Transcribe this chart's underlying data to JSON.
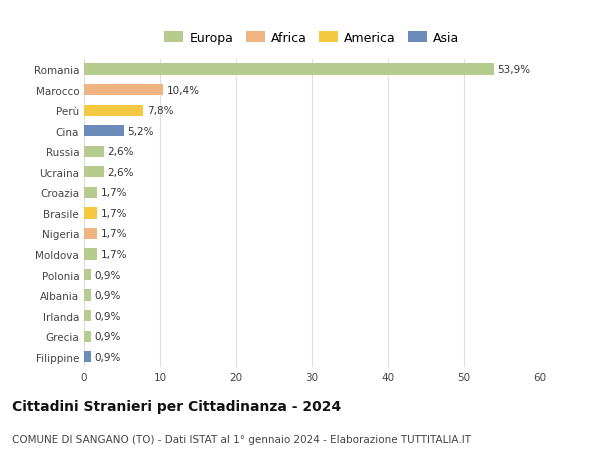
{
  "countries": [
    "Romania",
    "Marocco",
    "Perù",
    "Cina",
    "Russia",
    "Ucraina",
    "Croazia",
    "Brasile",
    "Nigeria",
    "Moldova",
    "Polonia",
    "Albania",
    "Irlanda",
    "Grecia",
    "Filippine"
  ],
  "values": [
    53.9,
    10.4,
    7.8,
    5.2,
    2.6,
    2.6,
    1.7,
    1.7,
    1.7,
    1.7,
    0.9,
    0.9,
    0.9,
    0.9,
    0.9
  ],
  "labels": [
    "53,9%",
    "10,4%",
    "7,8%",
    "5,2%",
    "2,6%",
    "2,6%",
    "1,7%",
    "1,7%",
    "1,7%",
    "1,7%",
    "0,9%",
    "0,9%",
    "0,9%",
    "0,9%",
    "0,9%"
  ],
  "colors": [
    "#b5cc8e",
    "#f0b482",
    "#f5c842",
    "#6b8cba",
    "#b5cc8e",
    "#b5cc8e",
    "#b5cc8e",
    "#f5c842",
    "#f0b482",
    "#b5cc8e",
    "#b5cc8e",
    "#b5cc8e",
    "#b5cc8e",
    "#b5cc8e",
    "#6b8cba"
  ],
  "legend_labels": [
    "Europa",
    "Africa",
    "America",
    "Asia"
  ],
  "legend_colors": [
    "#b5cc8e",
    "#f0b482",
    "#f5c842",
    "#6b8cba"
  ],
  "xlim": [
    0,
    60
  ],
  "xticks": [
    0,
    10,
    20,
    30,
    40,
    50,
    60
  ],
  "title": "Cittadini Stranieri per Cittadinanza - 2024",
  "subtitle": "COMUNE DI SANGANO (TO) - Dati ISTAT al 1° gennaio 2024 - Elaborazione TUTTITALIA.IT",
  "background_color": "#ffffff",
  "bar_height": 0.55,
  "label_fontsize": 7.5,
  "tick_fontsize": 7.5,
  "title_fontsize": 10,
  "subtitle_fontsize": 7.5,
  "grid_color": "#dddddd",
  "legend_fontsize": 9
}
